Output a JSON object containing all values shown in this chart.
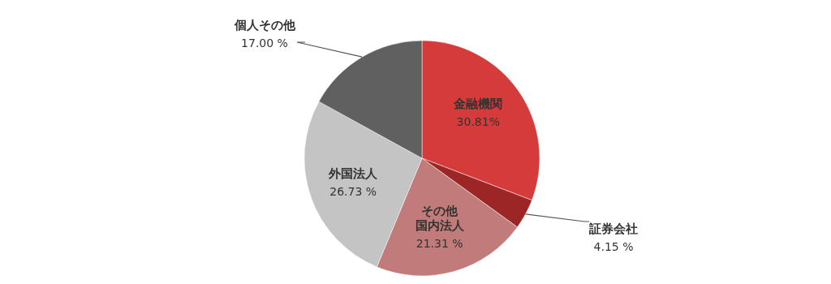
{
  "chart_data": {
    "type": "pie",
    "categories": [
      "金融機関",
      "証券会社",
      "その他国内法人",
      "外国法人",
      "個人その他"
    ],
    "values": [
      30.81,
      4.15,
      21.31,
      26.73,
      17.0
    ],
    "value_labels": [
      "30.81%",
      "4.15 %",
      "21.31 %",
      "26.73 %",
      "17.00 %"
    ],
    "colors": [
      "#d63b3b",
      "#9c2626",
      "#c17b7b",
      "#c4c4c4",
      "#606060"
    ]
  }
}
